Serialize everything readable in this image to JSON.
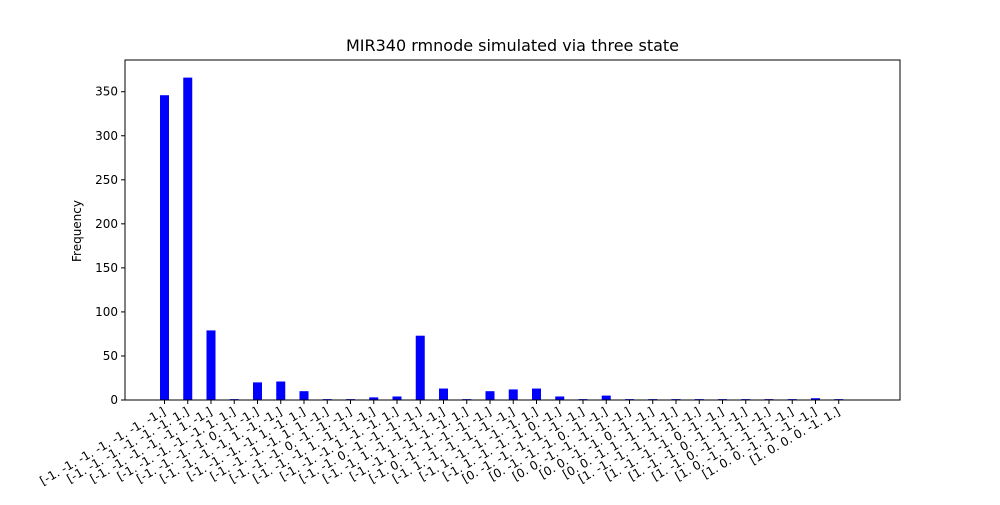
{
  "chart_data": {
    "type": "bar",
    "title": "MIR340 rmnode simulated via three state",
    "xlabel": "",
    "ylabel": "Frequency",
    "ylim": [
      0,
      386
    ],
    "yticks": [
      0,
      50,
      100,
      150,
      200,
      250,
      300,
      350
    ],
    "bar_color": "#0000ff",
    "categories": [
      "[-1. -1. -1. -1. -1. -1. -1.]",
      "[-1. -1. -1. -1. -1. -1. 1.]",
      "[-1. -1. -1. -1. -1. 1. -1.]",
      "[-1. -1. -1. -1. -1. 1. 1.]",
      "[-1. -1. -1. -1. 0. -1. -1.]",
      "[-1. -1. -1. -1. 1. -1. -1.]",
      "[-1. -1. -1. -1. 1. -1. 1.]",
      "[-1. -1. -1. -1. 1. 1. -1.]",
      "[-1. -1. -1. 0. -1. -1. -1.]",
      "[-1. -1. -1. 1. -1. -1. -1.]",
      "[-1. -1. -1. 1. -1. -1. 1.]",
      "[-1. -1. 0. -1. -1. -1. -1.]",
      "[-1. -1. 1. -1. -1. -1. -1.]",
      "[-1. -1. 1. -1. -1. -1. 1.]",
      "[-1. 0. -1. -1. -1. -1. -1.]",
      "[-1. 1. -1. -1. -1. -1. -1.]",
      "[-1. 1. -1. -1. -1. -1. 1.]",
      "[-1. 1. -1. -1. -1. 0. -1.]",
      "[0. -1. -1. -1. -1. -1. -1.]",
      "[0. -1. -1. -1. 0. -1. -1.]",
      "[0. 0. -1. -1. -1. -1. -1.]",
      "[0. 0. -1. -1. 0. -1. -1.]",
      "[0. 0. -1. 1. -1. -1. -1.]",
      "[1. -1. -1. -1. -1. -1. -1.]",
      "[1. -1. -1. -1. 0. -1. -1.]",
      "[1. -1. -1. 0. -1. -1. -1.]",
      "[1. -1. 0. -1. -1. -1. -1.]",
      "[1. 0. -1. -1. -1. -1. -1.]",
      "[1. 0. 0. -1. -1. -1. -1.]",
      "[1. 0. 0. 0. -1. 1.]"
    ],
    "values": [
      346,
      366,
      79,
      1,
      20,
      21,
      10,
      1,
      1,
      3,
      4,
      73,
      13,
      1,
      10,
      12,
      13,
      4,
      1,
      5,
      1,
      1,
      1,
      1,
      1,
      1,
      1,
      1,
      2,
      1
    ]
  }
}
